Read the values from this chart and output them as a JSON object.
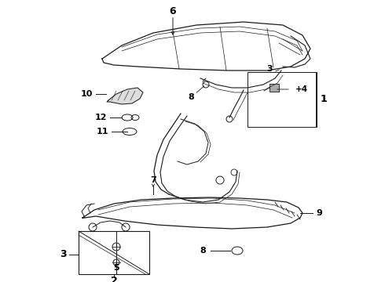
{
  "background_color": "#ffffff",
  "line_color": "#1a1a1a",
  "label_color": "#000000",
  "fig_width": 4.9,
  "fig_height": 3.6,
  "dpi": 100
}
